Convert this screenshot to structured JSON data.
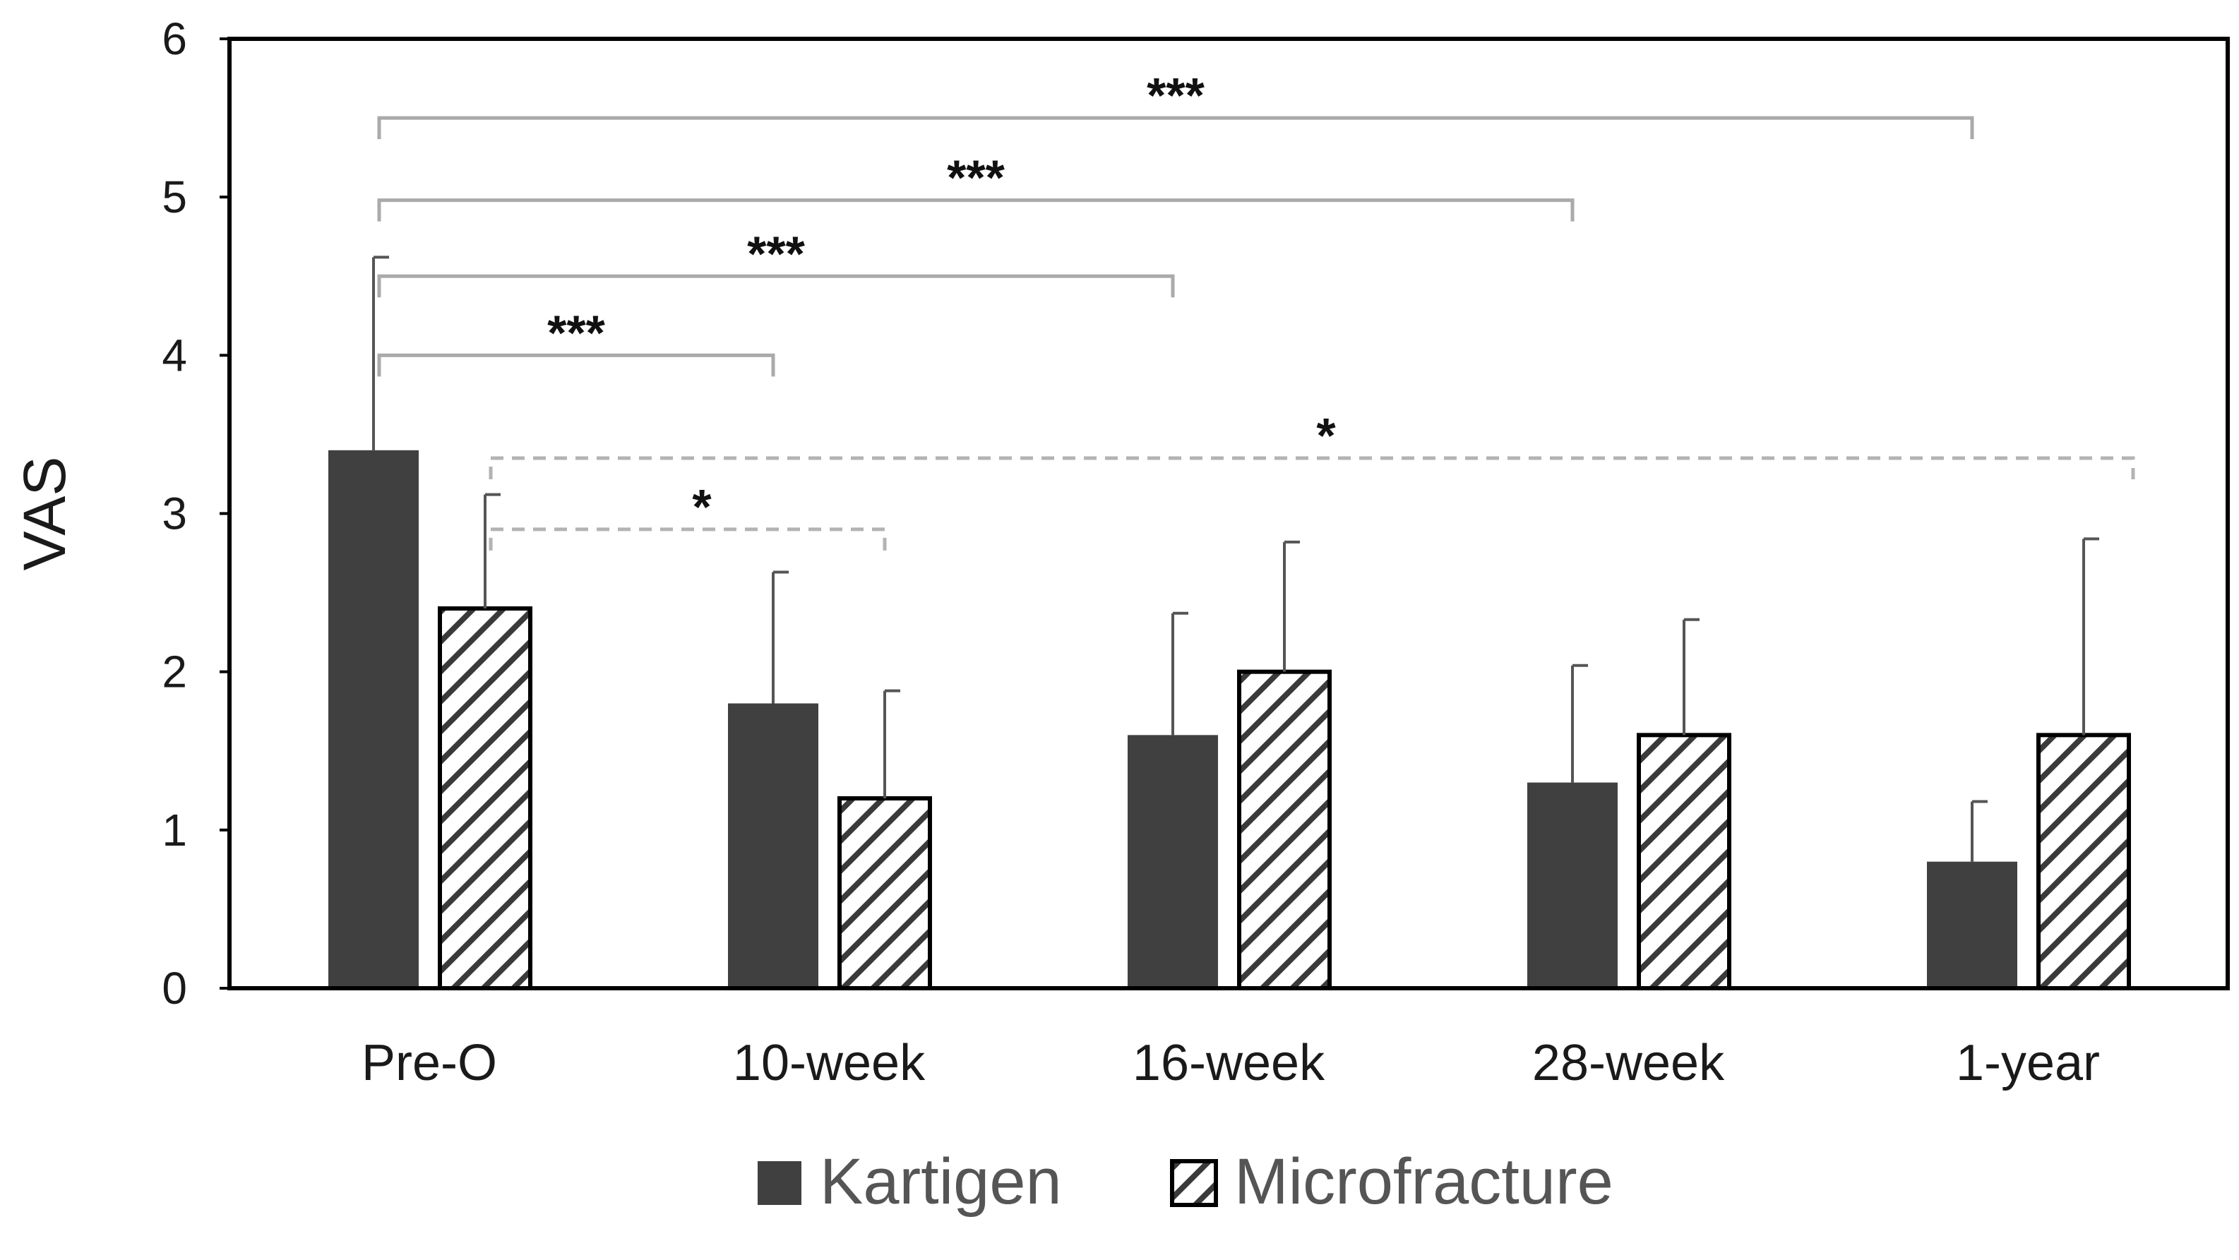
{
  "chart_data": {
    "type": "bar",
    "title": "",
    "xlabel": "",
    "ylabel": "VAS",
    "ylim": [
      0,
      6
    ],
    "yticks": [
      0,
      1,
      2,
      3,
      4,
      5,
      6
    ],
    "grid": false,
    "legend_position": "bottom-center",
    "categories": [
      "Pre-O",
      "10-week",
      "16-week",
      "28-week",
      "1-year"
    ],
    "series": [
      {
        "name": "Kartigen",
        "style": "solid",
        "color": "#404040",
        "values": [
          3.4,
          1.8,
          1.6,
          1.3,
          0.8
        ],
        "error": [
          1.22,
          0.83,
          0.77,
          0.74,
          0.38
        ]
      },
      {
        "name": "Microfracture",
        "style": "hatched",
        "color": "#404040",
        "values": [
          2.4,
          1.2,
          2.0,
          1.6,
          1.6
        ],
        "error": [
          0.72,
          0.68,
          0.82,
          0.73,
          1.24
        ]
      }
    ],
    "significance": [
      {
        "series": "Kartigen",
        "from": "Pre-O",
        "to": "10-week",
        "y": 4.0,
        "label": "***",
        "line": "solid"
      },
      {
        "series": "Kartigen",
        "from": "Pre-O",
        "to": "16-week",
        "y": 4.5,
        "label": "***",
        "line": "solid"
      },
      {
        "series": "Kartigen",
        "from": "Pre-O",
        "to": "28-week",
        "y": 4.98,
        "label": "***",
        "line": "solid"
      },
      {
        "series": "Kartigen",
        "from": "Pre-O",
        "to": "1-year",
        "y": 5.5,
        "label": "***",
        "line": "solid"
      },
      {
        "series": "Microfracture",
        "from": "Pre-O",
        "to": "10-week",
        "y": 2.9,
        "label": "*",
        "line": "dashed"
      },
      {
        "series": "Microfracture",
        "from": "Pre-O",
        "to": "1-year",
        "y": 3.35,
        "label": "*",
        "line": "dashed"
      }
    ]
  }
}
